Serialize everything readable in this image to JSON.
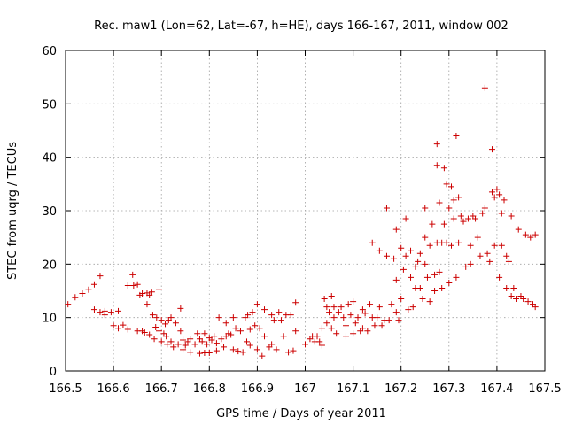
{
  "chart_data": {
    "type": "scatter",
    "title": "Rec. maw1 (Lon=62, Lat=-67, h=HE), days 166-167, 2011, window 002",
    "xlabel": "GPS time / Days of year 2011",
    "ylabel": "STEC from uqrg / TECUs",
    "xlim": [
      166.5,
      167.5
    ],
    "ylim": [
      0,
      60
    ],
    "x_ticks": [
      "166.5",
      "166.6",
      "166.7",
      "166.8",
      "166.9",
      "167",
      "167.1",
      "167.2",
      "167.3",
      "167.4",
      "167.5"
    ],
    "y_ticks": [
      "0",
      "10",
      "20",
      "30",
      "40",
      "50",
      "60"
    ],
    "grid": true,
    "marker": "plus",
    "color": "#cc0000",
    "points": [
      [
        166.505,
        12.5
      ],
      [
        166.52,
        13.8
      ],
      [
        166.535,
        14.5
      ],
      [
        166.548,
        15.2
      ],
      [
        166.56,
        16.2
      ],
      [
        166.572,
        17.8
      ],
      [
        166.56,
        11.5
      ],
      [
        166.572,
        11.0
      ],
      [
        166.582,
        10.5
      ],
      [
        166.582,
        11.2
      ],
      [
        166.595,
        11.0
      ],
      [
        166.6,
        8.5
      ],
      [
        166.61,
        11.2
      ],
      [
        166.61,
        8.0
      ],
      [
        166.62,
        8.6
      ],
      [
        166.63,
        7.8
      ],
      [
        166.63,
        16.0
      ],
      [
        166.642,
        16.0
      ],
      [
        166.64,
        18.0
      ],
      [
        166.65,
        16.2
      ],
      [
        166.65,
        7.5
      ],
      [
        166.655,
        14.2
      ],
      [
        166.66,
        7.5
      ],
      [
        166.66,
        14.5
      ],
      [
        166.665,
        7.2
      ],
      [
        166.67,
        14.6
      ],
      [
        166.67,
        12.5
      ],
      [
        166.675,
        14.2
      ],
      [
        166.675,
        6.8
      ],
      [
        166.68,
        14.8
      ],
      [
        166.682,
        10.5
      ],
      [
        166.685,
        6.0
      ],
      [
        166.688,
        8.2
      ],
      [
        166.69,
        10.0
      ],
      [
        166.695,
        7.5
      ],
      [
        166.695,
        15.2
      ],
      [
        166.7,
        9.5
      ],
      [
        166.7,
        5.5
      ],
      [
        166.705,
        7.0
      ],
      [
        166.708,
        8.8
      ],
      [
        166.71,
        6.5
      ],
      [
        166.712,
        5.0
      ],
      [
        166.715,
        9.5
      ],
      [
        166.72,
        5.5
      ],
      [
        166.72,
        10.0
      ],
      [
        166.725,
        4.5
      ],
      [
        166.73,
        9.0
      ],
      [
        166.735,
        5.0
      ],
      [
        166.74,
        7.5
      ],
      [
        166.74,
        11.7
      ],
      [
        166.745,
        5.8
      ],
      [
        166.745,
        4.0
      ],
      [
        166.75,
        4.8
      ],
      [
        166.755,
        5.5
      ],
      [
        166.76,
        6.0
      ],
      [
        166.76,
        3.5
      ],
      [
        166.77,
        5.0
      ],
      [
        166.775,
        7.0
      ],
      [
        166.78,
        3.3
      ],
      [
        166.78,
        6.0
      ],
      [
        166.785,
        5.5
      ],
      [
        166.79,
        3.4
      ],
      [
        166.79,
        7.0
      ],
      [
        166.795,
        5.0
      ],
      [
        166.8,
        6.2
      ],
      [
        166.8,
        3.4
      ],
      [
        166.805,
        5.8
      ],
      [
        166.81,
        6.5
      ],
      [
        166.815,
        3.8
      ],
      [
        166.815,
        5.2
      ],
      [
        166.82,
        10.0
      ],
      [
        166.825,
        6.0
      ],
      [
        166.83,
        4.5
      ],
      [
        166.835,
        9.0
      ],
      [
        166.835,
        6.5
      ],
      [
        166.84,
        7.0
      ],
      [
        166.845,
        6.8
      ],
      [
        166.85,
        4.0
      ],
      [
        166.85,
        10.0
      ],
      [
        166.855,
        8.0
      ],
      [
        166.86,
        3.7
      ],
      [
        166.865,
        7.5
      ],
      [
        166.87,
        3.5
      ],
      [
        166.875,
        10.0
      ],
      [
        166.878,
        5.5
      ],
      [
        166.88,
        10.5
      ],
      [
        166.885,
        4.8
      ],
      [
        166.885,
        7.8
      ],
      [
        166.89,
        11.0
      ],
      [
        166.895,
        8.5
      ],
      [
        166.9,
        4.0
      ],
      [
        166.9,
        12.5
      ],
      [
        166.905,
        8.0
      ],
      [
        166.91,
        2.8
      ],
      [
        166.915,
        11.5
      ],
      [
        166.915,
        6.5
      ],
      [
        166.925,
        4.5
      ],
      [
        166.93,
        5.0
      ],
      [
        166.93,
        10.5
      ],
      [
        166.935,
        9.5
      ],
      [
        166.94,
        4.0
      ],
      [
        166.945,
        11.0
      ],
      [
        166.95,
        9.5
      ],
      [
        166.955,
        6.5
      ],
      [
        166.96,
        10.5
      ],
      [
        166.965,
        3.5
      ],
      [
        166.97,
        10.5
      ],
      [
        166.975,
        3.8
      ],
      [
        166.98,
        12.8
      ],
      [
        166.98,
        7.5
      ],
      [
        167.0,
        5.0
      ],
      [
        167.01,
        6.0
      ],
      [
        167.015,
        6.5
      ],
      [
        167.02,
        5.5
      ],
      [
        167.025,
        6.5
      ],
      [
        167.03,
        5.5
      ],
      [
        167.035,
        8.0
      ],
      [
        167.035,
        4.8
      ],
      [
        167.04,
        13.5
      ],
      [
        167.045,
        12.0
      ],
      [
        167.045,
        9.0
      ],
      [
        167.05,
        11.0
      ],
      [
        167.055,
        14.0
      ],
      [
        167.055,
        8.0
      ],
      [
        167.06,
        10.0
      ],
      [
        167.06,
        12.0
      ],
      [
        167.065,
        7.0
      ],
      [
        167.07,
        11.0
      ],
      [
        167.075,
        12.0
      ],
      [
        167.08,
        10.0
      ],
      [
        167.085,
        8.5
      ],
      [
        167.085,
        6.5
      ],
      [
        167.09,
        12.5
      ],
      [
        167.095,
        10.5
      ],
      [
        167.1,
        13.0
      ],
      [
        167.1,
        7.0
      ],
      [
        167.105,
        9.0
      ],
      [
        167.11,
        10.0
      ],
      [
        167.115,
        7.5
      ],
      [
        167.12,
        11.5
      ],
      [
        167.12,
        8.0
      ],
      [
        167.125,
        10.8
      ],
      [
        167.13,
        7.5
      ],
      [
        167.135,
        12.5
      ],
      [
        167.14,
        24.0
      ],
      [
        167.14,
        10.0
      ],
      [
        167.145,
        8.5
      ],
      [
        167.15,
        10.0
      ],
      [
        167.155,
        22.5
      ],
      [
        167.155,
        12.0
      ],
      [
        167.16,
        8.5
      ],
      [
        167.165,
        9.5
      ],
      [
        167.17,
        30.5
      ],
      [
        167.17,
        21.5
      ],
      [
        167.175,
        9.5
      ],
      [
        167.18,
        12.5
      ],
      [
        167.185,
        21.0
      ],
      [
        167.19,
        26.5
      ],
      [
        167.19,
        17.0
      ],
      [
        167.19,
        11.0
      ],
      [
        167.195,
        9.5
      ],
      [
        167.2,
        23.0
      ],
      [
        167.2,
        13.5
      ],
      [
        167.205,
        19.0
      ],
      [
        167.21,
        21.5
      ],
      [
        167.21,
        28.5
      ],
      [
        167.215,
        11.5
      ],
      [
        167.22,
        22.5
      ],
      [
        167.22,
        17.5
      ],
      [
        167.225,
        12.0
      ],
      [
        167.23,
        19.5
      ],
      [
        167.23,
        15.5
      ],
      [
        167.235,
        20.5
      ],
      [
        167.24,
        22.0
      ],
      [
        167.24,
        15.5
      ],
      [
        167.245,
        13.5
      ],
      [
        167.25,
        30.5
      ],
      [
        167.25,
        25.0
      ],
      [
        167.25,
        20.0
      ],
      [
        167.255,
        17.5
      ],
      [
        167.26,
        23.5
      ],
      [
        167.26,
        13.0
      ],
      [
        167.265,
        27.5
      ],
      [
        167.27,
        15.0
      ],
      [
        167.27,
        18.0
      ],
      [
        167.275,
        42.5
      ],
      [
        167.275,
        38.5
      ],
      [
        167.275,
        24.0
      ],
      [
        167.28,
        31.5
      ],
      [
        167.28,
        18.5
      ],
      [
        167.285,
        24.0
      ],
      [
        167.285,
        15.5
      ],
      [
        167.29,
        38.0
      ],
      [
        167.29,
        27.5
      ],
      [
        167.295,
        35.0
      ],
      [
        167.295,
        24.0
      ],
      [
        167.3,
        30.5
      ],
      [
        167.3,
        16.5
      ],
      [
        167.305,
        34.5
      ],
      [
        167.305,
        23.5
      ],
      [
        167.31,
        32.0
      ],
      [
        167.31,
        28.5
      ],
      [
        167.315,
        44.0
      ],
      [
        167.315,
        17.5
      ],
      [
        167.32,
        32.5
      ],
      [
        167.32,
        24.0
      ],
      [
        167.325,
        29.0
      ],
      [
        167.33,
        28.0
      ],
      [
        167.335,
        19.5
      ],
      [
        167.34,
        28.5
      ],
      [
        167.345,
        23.5
      ],
      [
        167.345,
        20.0
      ],
      [
        167.35,
        29.0
      ],
      [
        167.355,
        28.5
      ],
      [
        167.36,
        25.0
      ],
      [
        167.365,
        21.5
      ],
      [
        167.37,
        29.5
      ],
      [
        167.375,
        53.0
      ],
      [
        167.375,
        30.5
      ],
      [
        167.38,
        22.0
      ],
      [
        167.385,
        20.5
      ],
      [
        167.39,
        41.5
      ],
      [
        167.39,
        33.5
      ],
      [
        167.395,
        32.5
      ],
      [
        167.395,
        23.5
      ],
      [
        167.4,
        34.0
      ],
      [
        167.405,
        33.0
      ],
      [
        167.405,
        17.5
      ],
      [
        167.41,
        29.5
      ],
      [
        167.41,
        23.5
      ],
      [
        167.415,
        32.0
      ],
      [
        167.42,
        21.5
      ],
      [
        167.42,
        15.5
      ],
      [
        167.425,
        20.5
      ],
      [
        167.43,
        29.0
      ],
      [
        167.43,
        14.0
      ],
      [
        167.435,
        15.5
      ],
      [
        167.44,
        13.5
      ],
      [
        167.445,
        26.5
      ],
      [
        167.45,
        14.0
      ],
      [
        167.455,
        13.5
      ],
      [
        167.46,
        25.5
      ],
      [
        167.465,
        13.0
      ],
      [
        167.47,
        25.0
      ],
      [
        167.475,
        12.5
      ],
      [
        167.48,
        25.5
      ],
      [
        167.48,
        12.0
      ]
    ]
  }
}
